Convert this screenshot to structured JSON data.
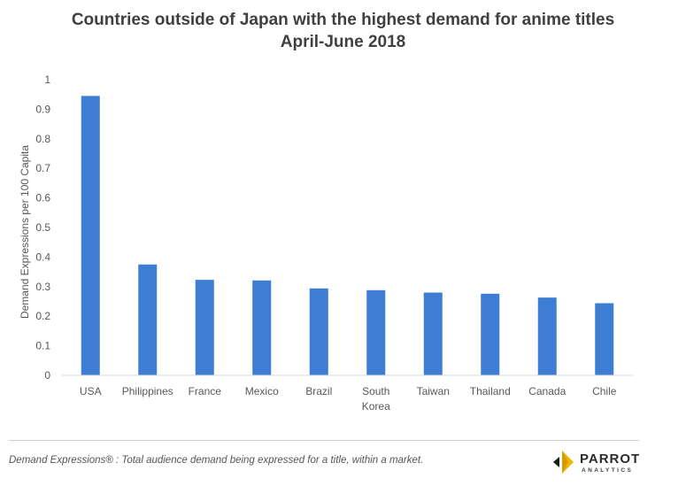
{
  "chart_data": {
    "type": "bar",
    "title": "Countries outside of Japan with the highest demand for anime titles",
    "subtitle": "April-June 2018",
    "xlabel": "",
    "ylabel": "Demand Expressions per 100 Capita",
    "categories": [
      "USA",
      "Philippines",
      "France",
      "Mexico",
      "Brazil",
      "South Korea",
      "Taiwan",
      "Thailand",
      "Canada",
      "Chile"
    ],
    "category_lines": [
      [
        "USA"
      ],
      [
        "Philippines"
      ],
      [
        "France"
      ],
      [
        "Mexico"
      ],
      [
        "Brazil"
      ],
      [
        "South",
        "Korea"
      ],
      [
        "Taiwan"
      ],
      [
        "Thailand"
      ],
      [
        "Canada"
      ],
      [
        "Chile"
      ]
    ],
    "values": [
      0.945,
      0.375,
      0.323,
      0.321,
      0.294,
      0.288,
      0.28,
      0.276,
      0.263,
      0.244
    ],
    "ylim": [
      0,
      1
    ],
    "yticks": [
      "0",
      "0.1",
      "0.2",
      "0.3",
      "0.4",
      "0.5",
      "0.6",
      "0.7",
      "0.8",
      "0.9",
      "1"
    ],
    "grid": false,
    "legend": "none",
    "bar_color": "#3e7dd4",
    "axis_color": "#d9d9d9",
    "text_color": "#595959"
  },
  "footer": {
    "note": "Demand Expressions® :  Total audience demand being expressed for a title, within a market."
  },
  "logo": {
    "word": "PARROT",
    "sub": "ANALYTICS",
    "icon": "parrot-logo-icon",
    "colors": [
      "#1c1c1c",
      "#f2b705"
    ]
  }
}
